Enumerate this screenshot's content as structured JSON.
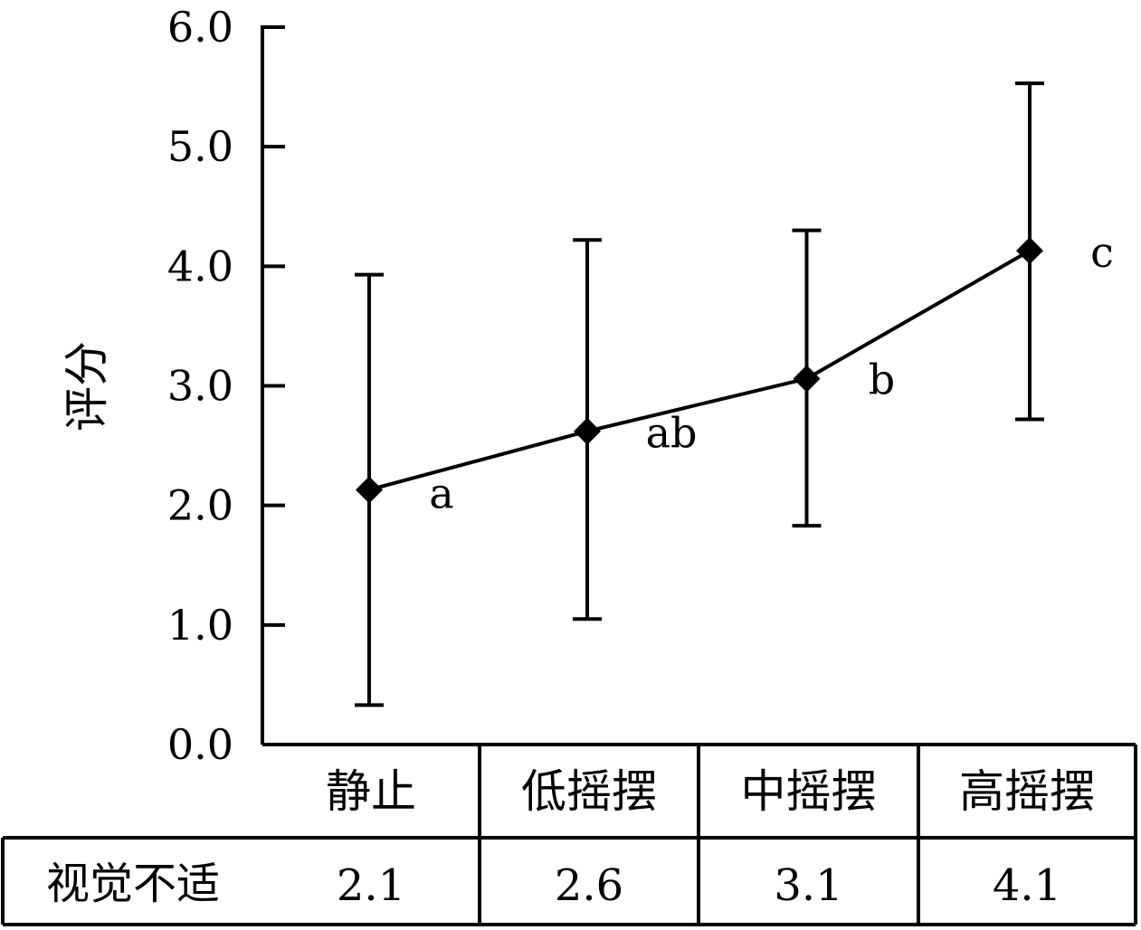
{
  "chart_data": {
    "type": "line",
    "ylabel": "评分",
    "ylim": [
      0,
      6
    ],
    "yticks": [
      "0.0",
      "1.0",
      "2.0",
      "3.0",
      "4.0",
      "5.0",
      "6.0"
    ],
    "categories": [
      "静止",
      "低摇摆",
      "中摇摆",
      "高摇摆"
    ],
    "series": [
      {
        "values": [
          2.13,
          2.62,
          3.06,
          4.13
        ],
        "error_low": [
          0.33,
          1.05,
          1.83,
          2.72
        ],
        "error_high": [
          3.93,
          4.22,
          4.3,
          5.53
        ],
        "significance": [
          "a",
          "ab",
          "b",
          "c"
        ]
      }
    ],
    "marker": "diamond",
    "grid": false,
    "table": {
      "row_label": "视觉不适",
      "values": [
        "2.1",
        "2.6",
        "3.1",
        "4.1"
      ]
    }
  }
}
